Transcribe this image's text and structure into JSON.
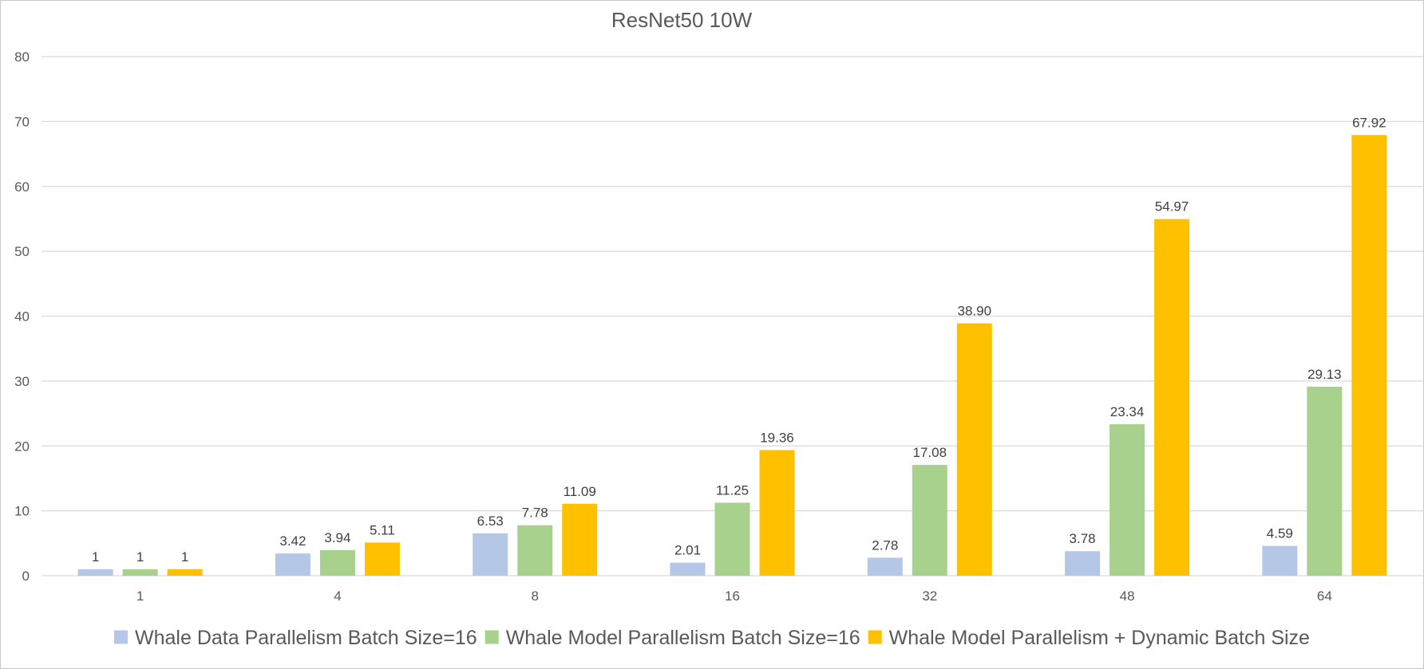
{
  "chart_data": {
    "type": "bar",
    "title": "ResNet50 10W",
    "xlabel": "",
    "ylabel": "",
    "categories": [
      "1",
      "4",
      "8",
      "16",
      "32",
      "48",
      "64"
    ],
    "ylim": [
      0,
      80
    ],
    "yticks": [
      0,
      10,
      20,
      30,
      40,
      50,
      60,
      70,
      80
    ],
    "grid": true,
    "legend_position": "bottom",
    "series": [
      {
        "name": "Whale Data Parallelism Batch Size=16",
        "color": "#b4c7e7",
        "values": [
          1,
          3.42,
          6.53,
          2.01,
          2.78,
          3.78,
          4.59
        ],
        "labels": [
          "1",
          "3.42",
          "6.53",
          "2.01",
          "2.78",
          "3.78",
          "4.59"
        ]
      },
      {
        "name": "Whale Model Parallelism Batch Size=16",
        "color": "#a9d18e",
        "values": [
          1,
          3.94,
          7.78,
          11.25,
          17.08,
          23.34,
          29.13
        ],
        "labels": [
          "1",
          "3.94",
          "7.78",
          "11.25",
          "17.08",
          "23.34",
          "29.13"
        ]
      },
      {
        "name": "Whale Model Parallelism + Dynamic Batch Size",
        "color": "#ffc000",
        "values": [
          1,
          5.11,
          11.09,
          19.36,
          38.9,
          54.97,
          67.92
        ],
        "labels": [
          "1",
          "5.11",
          "11.09",
          "19.36",
          "38.90",
          "54.97",
          "67.92"
        ]
      }
    ]
  }
}
